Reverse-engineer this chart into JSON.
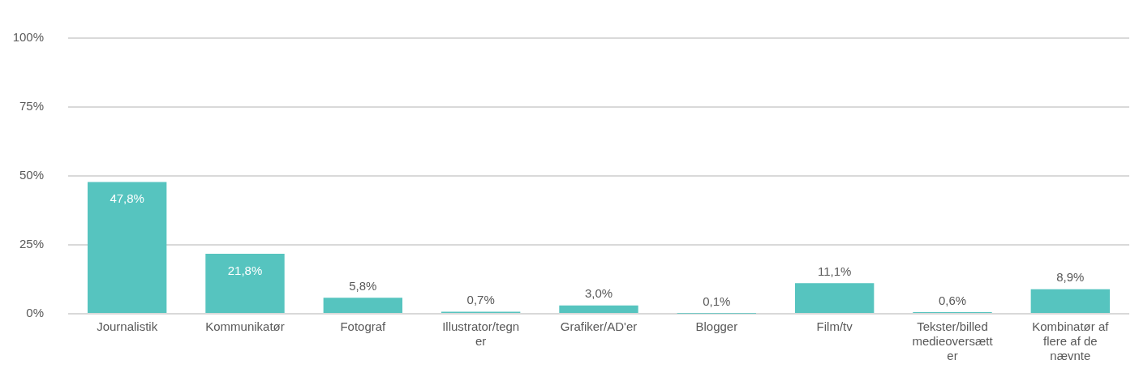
{
  "chart_data": {
    "type": "bar",
    "categories": [
      "Journalistik",
      "Kommunikatør",
      "Fotograf",
      "Illustrator/tegner",
      "Grafiker/AD'er",
      "Blogger",
      "Film/tv",
      "Tekster/billedmedieoversætter",
      "Kombinatør af flere af de nævnte"
    ],
    "values": [
      47.8,
      21.8,
      5.8,
      0.7,
      3.0,
      0.1,
      11.1,
      0.6,
      8.9
    ],
    "value_labels": [
      "47,8%",
      "21,8%",
      "5,8%",
      "0,7%",
      "3,0%",
      "0,1%",
      "11,1%",
      "0,6%",
      "8,9%"
    ],
    "color": "#56c4bf",
    "ylim": [
      0,
      100
    ],
    "yticks": [
      {
        "value": 0,
        "label": "0%"
      },
      {
        "value": 25,
        "label": "25%"
      },
      {
        "value": 50,
        "label": "50%"
      },
      {
        "value": 75,
        "label": "75%"
      },
      {
        "value": 100,
        "label": "100%"
      }
    ],
    "grid": "y",
    "legend": false
  }
}
